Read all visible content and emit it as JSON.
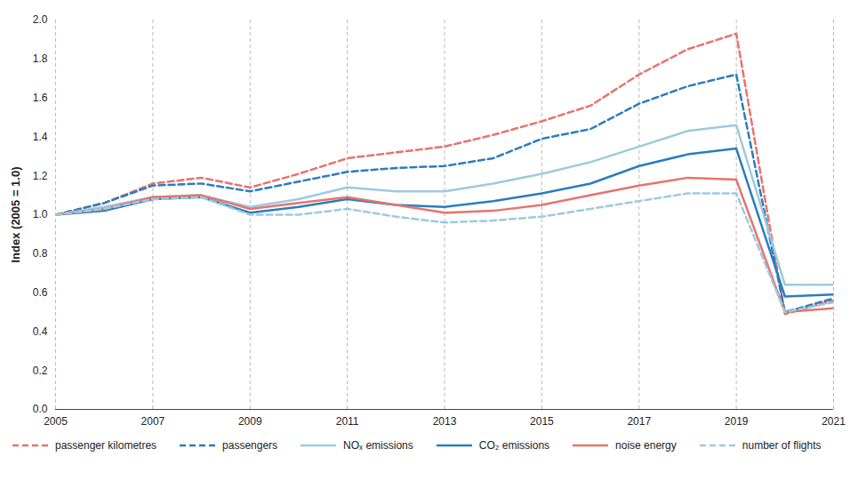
{
  "chart_data": {
    "type": "line",
    "y_label": "Index (2005 = 1.0)",
    "x": [
      2005,
      2006,
      2007,
      2008,
      2009,
      2010,
      2011,
      2012,
      2013,
      2014,
      2015,
      2016,
      2017,
      2018,
      2019,
      2020,
      2021
    ],
    "xlim": [
      2005,
      2021
    ],
    "xticks": [
      2005,
      2007,
      2009,
      2011,
      2013,
      2015,
      2017,
      2019,
      2021
    ],
    "ylim": [
      0,
      2
    ],
    "yticks": [
      {
        "value": 0,
        "label": "0.0"
      },
      0.2,
      0.4,
      0.6,
      0.8,
      {
        "value": 1,
        "label": "1.0"
      },
      1.2,
      1.4,
      1.6,
      1.8,
      {
        "value": 2,
        "label": "2.0"
      }
    ],
    "grid": "x",
    "legend": "bottom",
    "series": [
      {
        "name": "passenger kilometres",
        "color": "#e8736c",
        "line_style": "dashed",
        "values": [
          1.0,
          1.06,
          1.16,
          1.19,
          1.14,
          1.21,
          1.29,
          1.32,
          1.35,
          1.41,
          1.48,
          1.56,
          1.72,
          1.85,
          1.93,
          0.49,
          0.56
        ]
      },
      {
        "name": "passengers",
        "color": "#2a7dc0",
        "line_style": "dashed",
        "values": [
          1.0,
          1.06,
          1.15,
          1.16,
          1.12,
          1.17,
          1.22,
          1.24,
          1.25,
          1.29,
          1.39,
          1.44,
          1.57,
          1.66,
          1.72,
          0.5,
          0.57
        ]
      },
      {
        "name": "NOₓ emissions",
        "color": "#9ccae0",
        "line_style": "solid",
        "values": [
          1.0,
          1.04,
          1.09,
          1.1,
          1.04,
          1.08,
          1.14,
          1.12,
          1.12,
          1.16,
          1.21,
          1.27,
          1.35,
          1.43,
          1.46,
          0.64,
          0.64
        ]
      },
      {
        "name": "CO₂ emissions",
        "color": "#2a7dc0",
        "line_style": "solid",
        "values": [
          1.0,
          1.02,
          1.08,
          1.09,
          1.01,
          1.04,
          1.08,
          1.05,
          1.04,
          1.07,
          1.11,
          1.16,
          1.25,
          1.31,
          1.34,
          0.58,
          0.59
        ]
      },
      {
        "name": "noise energy",
        "color": "#e8736c",
        "line_style": "solid",
        "values": [
          1.0,
          1.03,
          1.09,
          1.1,
          1.03,
          1.06,
          1.09,
          1.05,
          1.01,
          1.02,
          1.05,
          1.1,
          1.15,
          1.19,
          1.18,
          0.5,
          0.52
        ]
      },
      {
        "name": "number of flights",
        "color": "#9ccae0",
        "line_style": "dashed",
        "values": [
          1.0,
          1.03,
          1.08,
          1.09,
          1.0,
          1.0,
          1.03,
          0.99,
          0.96,
          0.97,
          0.99,
          1.03,
          1.07,
          1.11,
          1.11,
          0.5,
          0.55
        ]
      }
    ]
  }
}
